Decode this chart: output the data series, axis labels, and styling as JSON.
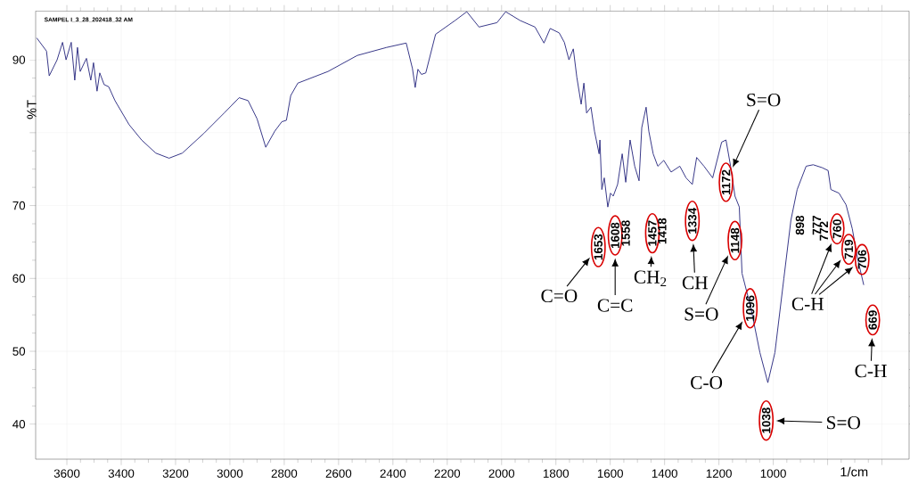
{
  "chart_data": {
    "type": "line",
    "xlabel": "1/cm",
    "ylabel": "%T",
    "color": "#2a2a80",
    "grid": true,
    "x": [
      3711,
      3675,
      3665,
      3636,
      3616,
      3603,
      3584,
      3571,
      3561,
      3551,
      3528,
      3512,
      3502,
      3489,
      3479,
      3463,
      3446,
      3423,
      3371,
      3325,
      3273,
      3224,
      3175,
      3096,
      3021,
      2966,
      2933,
      2900,
      2868,
      2835,
      2809,
      2792,
      2776,
      2750,
      2639,
      2531,
      2423,
      2351,
      2328,
      2318,
      2308,
      2295,
      2279,
      2243,
      2171,
      2128,
      2083,
      2017,
      1985,
      1932,
      1877,
      1844,
      1821,
      1788,
      1769,
      1752,
      1736,
      1723,
      1707,
      1697,
      1687,
      1671,
      1658,
      1641,
      1638,
      1631,
      1622,
      1609,
      1599,
      1589,
      1573,
      1556,
      1543,
      1527,
      1510,
      1494,
      1484,
      1468,
      1458,
      1442,
      1425,
      1403,
      1376,
      1344,
      1321,
      1298,
      1282,
      1255,
      1223,
      1190,
      1174,
      1157,
      1141,
      1125,
      1115,
      1082,
      1049,
      1020,
      994,
      961,
      935,
      912,
      879,
      853,
      820,
      798,
      788,
      758,
      732,
      709,
      690,
      667
    ],
    "values": [
      93.0,
      91.2,
      87.8,
      90.0,
      92.4,
      90.0,
      92.4,
      87.2,
      91.7,
      88.4,
      90.2,
      87.2,
      89.6,
      85.7,
      88.2,
      86.6,
      86.3,
      84.4,
      81.1,
      79.0,
      77.2,
      76.5,
      77.2,
      79.9,
      82.7,
      84.8,
      84.4,
      81.9,
      78.0,
      80.2,
      81.5,
      81.7,
      85.1,
      86.8,
      88.4,
      90.6,
      91.7,
      92.3,
      88.8,
      86.2,
      88.7,
      88.0,
      88.2,
      93.5,
      95.4,
      96.6,
      94.5,
      95.1,
      96.6,
      95.4,
      94.5,
      92.3,
      94.3,
      93.7,
      92.4,
      90.0,
      91.5,
      87.6,
      83.9,
      86.8,
      82.7,
      83.5,
      80.2,
      77.1,
      79.0,
      72.2,
      73.8,
      69.8,
      71.7,
      71.3,
      72.9,
      77.1,
      73.2,
      79.0,
      75.4,
      73.4,
      80.7,
      83.5,
      80.2,
      77.1,
      75.4,
      76.2,
      74.6,
      75.4,
      73.8,
      72.9,
      76.6,
      75.4,
      73.8,
      78.7,
      79.0,
      75.4,
      71.3,
      69.8,
      60.7,
      55.9,
      49.8,
      45.7,
      49.8,
      60.0,
      68.0,
      72.2,
      75.4,
      75.6,
      75.2,
      74.8,
      72.2,
      71.7,
      70.1,
      66.8,
      62.8,
      59.1
    ],
    "xlim": [
      3715,
      500
    ],
    "ylim": [
      35.2,
      96.7
    ],
    "xticks": [
      3600,
      3400,
      3200,
      3000,
      2800,
      2600,
      2400,
      2200,
      2000,
      1800,
      1600,
      1400,
      1200,
      1000,
      {
        "value": 800,
        "label": null
      },
      {
        "value": 600,
        "label": null
      }
    ],
    "yticks": [
      40,
      50,
      60,
      70,
      {
        "value": 80,
        "label": null
      },
      90
    ],
    "annotations": [
      "SAMPEL I_3_28_202418_32 AM",
      "1653",
      "1608",
      "1558",
      "1457",
      "1418",
      "1334",
      "1172",
      "1148",
      "1096",
      "1038",
      "898",
      "777",
      "772",
      "760",
      "719",
      "706",
      "669",
      "C=O",
      "C=C",
      "CH$_{2}$",
      "CH",
      "S=O",
      "S=O",
      "C-O",
      "S=O",
      "C-H",
      "C-H"
    ]
  }
}
